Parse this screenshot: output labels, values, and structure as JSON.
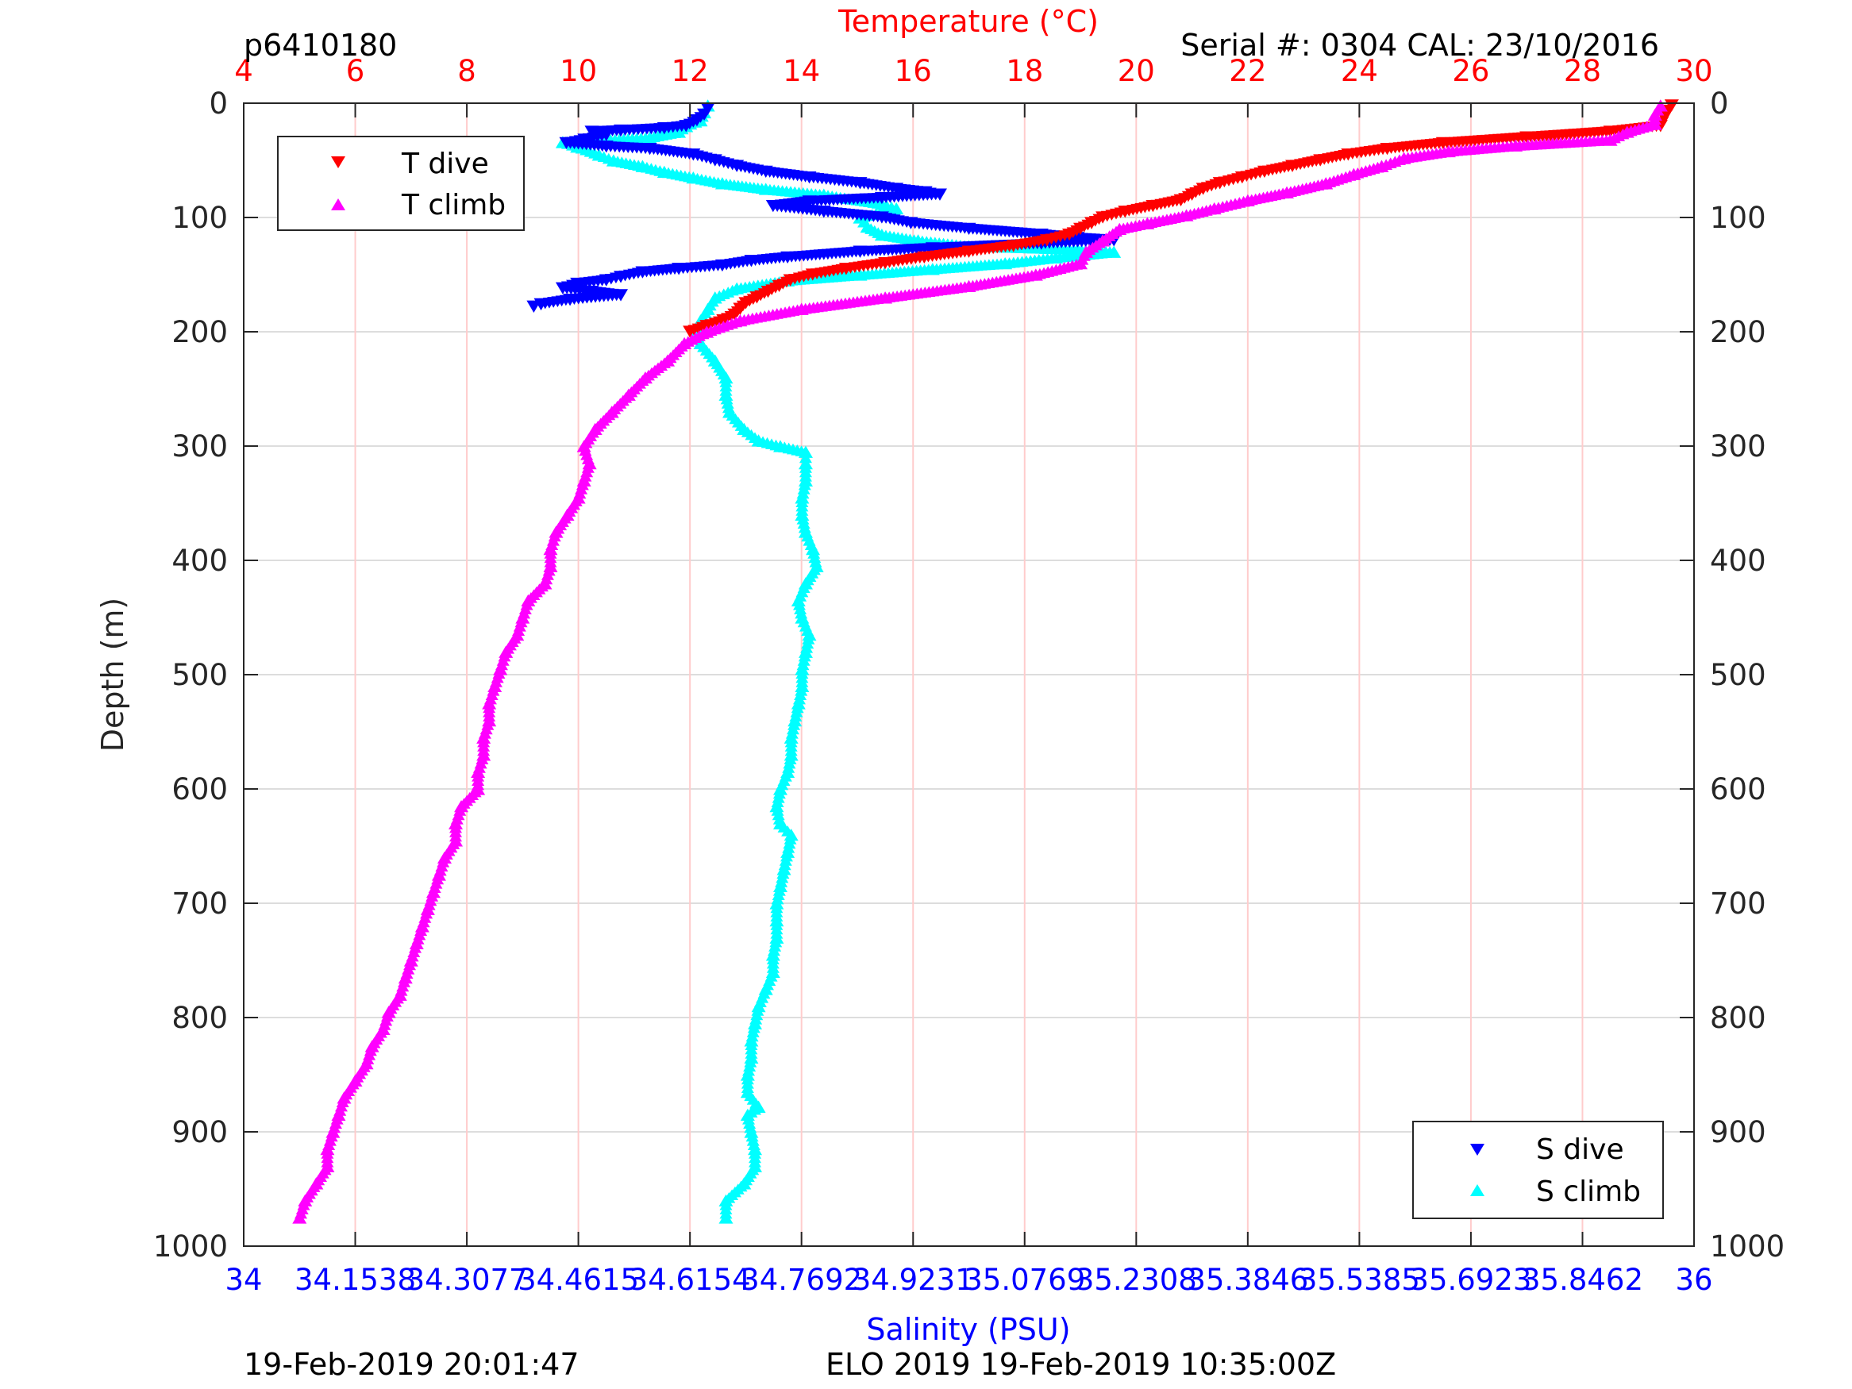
{
  "header": {
    "glider_id": "p6410180",
    "serial_info": "Serial #: 0304  CAL: 23/10/2016"
  },
  "footer": {
    "left_timestamp": "19-Feb-2019 20:01:47",
    "mission": "ELO 2019 19-Feb-2019 10:35:00Z"
  },
  "colors": {
    "t_dive": "#ff0000",
    "t_climb": "#ff00ff",
    "s_dive": "#0000ff",
    "s_climb": "#00ffff",
    "temp_axis": "#ff0000",
    "sal_axis": "#0000ff",
    "grid_temp": "#ffcccc",
    "grid_depth": "#dddddd"
  },
  "chart_data": {
    "type": "scatter",
    "title": "",
    "temperature_axis": {
      "label": "Temperature (°C)",
      "range": [
        4,
        30
      ],
      "ticks": [
        4,
        6,
        8,
        10,
        12,
        14,
        16,
        18,
        20,
        22,
        24,
        26,
        28,
        30
      ],
      "tick_labels": [
        "4",
        "6",
        "8",
        "10",
        "12",
        "14",
        "16",
        "18",
        "20",
        "22",
        "24",
        "26",
        "28",
        "30"
      ]
    },
    "salinity_axis": {
      "label": "Salinity (PSU)",
      "range": [
        34,
        36
      ],
      "ticks": [
        34,
        34.1538,
        34.3077,
        34.4615,
        34.6154,
        34.7692,
        34.9231,
        35.0769,
        35.2308,
        35.3846,
        35.5385,
        35.6923,
        35.8462,
        36
      ],
      "tick_labels": [
        "34",
        "34.1538",
        "34.3077",
        "34.4615",
        "34.6154",
        "34.7692",
        "34.9231",
        "35.0769",
        "35.2308",
        "35.3846",
        "35.5385",
        "35.6923",
        "35.8462",
        "36"
      ]
    },
    "depth_axis": {
      "label": "Depth (m)",
      "range": [
        0,
        1000
      ],
      "reversed": true,
      "ticks": [
        0,
        100,
        200,
        300,
        400,
        500,
        600,
        700,
        800,
        900,
        1000
      ],
      "tick_labels": [
        "0",
        "100",
        "200",
        "300",
        "400",
        "500",
        "600",
        "700",
        "800",
        "900",
        "1000"
      ]
    },
    "legend_temperature": {
      "placement": "top-left",
      "entries": [
        "T dive",
        "T climb"
      ]
    },
    "legend_salinity": {
      "placement": "bottom-right",
      "entries": [
        "S dive",
        "S climb"
      ]
    },
    "series": [
      {
        "name": "T dive",
        "axis": "temperature",
        "marker": "triangle-down",
        "points": [
          [
            29.6,
            2
          ],
          [
            29.5,
            10
          ],
          [
            29.4,
            20
          ],
          [
            28.5,
            25
          ],
          [
            27.0,
            30
          ],
          [
            25.5,
            35
          ],
          [
            24.5,
            40
          ],
          [
            23.8,
            45
          ],
          [
            23.3,
            50
          ],
          [
            22.8,
            55
          ],
          [
            22.3,
            60
          ],
          [
            21.9,
            65
          ],
          [
            21.5,
            70
          ],
          [
            21.2,
            75
          ],
          [
            21.0,
            80
          ],
          [
            20.8,
            85
          ],
          [
            20.3,
            90
          ],
          [
            19.8,
            95
          ],
          [
            19.4,
            100
          ],
          [
            19.2,
            105
          ],
          [
            19.0,
            110
          ],
          [
            18.8,
            115
          ],
          [
            18.4,
            120
          ],
          [
            17.8,
            125
          ],
          [
            17.0,
            130
          ],
          [
            16.2,
            135
          ],
          [
            15.5,
            140
          ],
          [
            14.8,
            145
          ],
          [
            14.2,
            150
          ],
          [
            13.8,
            155
          ],
          [
            13.6,
            160
          ],
          [
            13.4,
            165
          ],
          [
            13.2,
            170
          ],
          [
            13.0,
            175
          ],
          [
            12.9,
            180
          ],
          [
            12.8,
            185
          ],
          [
            12.6,
            190
          ],
          [
            12.3,
            195
          ],
          [
            12.0,
            200
          ]
        ]
      },
      {
        "name": "T climb",
        "axis": "temperature",
        "marker": "triangle-up",
        "points": [
          [
            5.0,
            975
          ],
          [
            5.1,
            960
          ],
          [
            5.3,
            945
          ],
          [
            5.5,
            930
          ],
          [
            5.5,
            915
          ],
          [
            5.6,
            900
          ],
          [
            5.7,
            885
          ],
          [
            5.8,
            870
          ],
          [
            6.0,
            855
          ],
          [
            6.2,
            840
          ],
          [
            6.3,
            825
          ],
          [
            6.5,
            810
          ],
          [
            6.6,
            795
          ],
          [
            6.8,
            780
          ],
          [
            6.9,
            765
          ],
          [
            7.0,
            750
          ],
          [
            7.1,
            735
          ],
          [
            7.2,
            720
          ],
          [
            7.3,
            705
          ],
          [
            7.4,
            690
          ],
          [
            7.5,
            675
          ],
          [
            7.6,
            660
          ],
          [
            7.8,
            645
          ],
          [
            7.8,
            630
          ],
          [
            7.9,
            615
          ],
          [
            8.2,
            600
          ],
          [
            8.2,
            585
          ],
          [
            8.3,
            570
          ],
          [
            8.3,
            555
          ],
          [
            8.4,
            540
          ],
          [
            8.4,
            525
          ],
          [
            8.5,
            510
          ],
          [
            8.6,
            495
          ],
          [
            8.7,
            480
          ],
          [
            8.9,
            465
          ],
          [
            9.0,
            450
          ],
          [
            9.1,
            435
          ],
          [
            9.4,
            420
          ],
          [
            9.5,
            405
          ],
          [
            9.5,
            390
          ],
          [
            9.6,
            375
          ],
          [
            9.8,
            360
          ],
          [
            10.0,
            345
          ],
          [
            10.1,
            330
          ],
          [
            10.2,
            315
          ],
          [
            10.1,
            300
          ],
          [
            10.3,
            285
          ],
          [
            10.6,
            270
          ],
          [
            10.9,
            255
          ],
          [
            11.2,
            240
          ],
          [
            11.6,
            225
          ],
          [
            11.9,
            210
          ],
          [
            12.3,
            200
          ],
          [
            12.9,
            190
          ],
          [
            14.0,
            180
          ],
          [
            15.5,
            170
          ],
          [
            17.0,
            160
          ],
          [
            18.2,
            150
          ],
          [
            19.0,
            140
          ],
          [
            19.1,
            130
          ],
          [
            19.4,
            120
          ],
          [
            19.7,
            110
          ],
          [
            20.2,
            105
          ],
          [
            20.9,
            98
          ],
          [
            21.4,
            92
          ],
          [
            22.0,
            85
          ],
          [
            22.7,
            78
          ],
          [
            23.4,
            70
          ],
          [
            23.9,
            62
          ],
          [
            24.4,
            55
          ],
          [
            24.8,
            48
          ],
          [
            25.6,
            42
          ],
          [
            26.8,
            37
          ],
          [
            28.5,
            32
          ],
          [
            28.8,
            25
          ],
          [
            29.3,
            18
          ],
          [
            29.3,
            10
          ],
          [
            29.4,
            2
          ]
        ]
      },
      {
        "name": "S dive",
        "axis": "salinity",
        "marker": "triangle-down",
        "points": [
          [
            34.64,
            5
          ],
          [
            34.635,
            10
          ],
          [
            34.625,
            15
          ],
          [
            34.61,
            20
          ],
          [
            34.58,
            22
          ],
          [
            34.52,
            24
          ],
          [
            34.48,
            25
          ],
          [
            34.5,
            28
          ],
          [
            34.47,
            32
          ],
          [
            34.445,
            35
          ],
          [
            34.5,
            38
          ],
          [
            34.56,
            40
          ],
          [
            34.62,
            45
          ],
          [
            34.65,
            50
          ],
          [
            34.68,
            55
          ],
          [
            34.72,
            60
          ],
          [
            34.78,
            65
          ],
          [
            34.85,
            70
          ],
          [
            34.9,
            75
          ],
          [
            34.94,
            78
          ],
          [
            34.96,
            80
          ],
          [
            34.88,
            83
          ],
          [
            34.78,
            86
          ],
          [
            34.73,
            90
          ],
          [
            34.8,
            95
          ],
          [
            34.88,
            100
          ],
          [
            34.92,
            105
          ],
          [
            35.0,
            110
          ],
          [
            35.1,
            115
          ],
          [
            35.15,
            118
          ],
          [
            35.2,
            120
          ],
          [
            35.1,
            123
          ],
          [
            34.95,
            127
          ],
          [
            34.85,
            130
          ],
          [
            34.75,
            135
          ],
          [
            34.7,
            138
          ],
          [
            34.66,
            142
          ],
          [
            34.6,
            145
          ],
          [
            34.55,
            148
          ],
          [
            34.52,
            152
          ],
          [
            34.5,
            155
          ],
          [
            34.46,
            158
          ],
          [
            34.44,
            162
          ],
          [
            34.48,
            165
          ],
          [
            34.52,
            168
          ],
          [
            34.45,
            172
          ],
          [
            34.41,
            176
          ],
          [
            34.4,
            178
          ]
        ]
      },
      {
        "name": "S climb",
        "axis": "salinity",
        "marker": "triangle-up",
        "points": [
          [
            34.665,
            975
          ],
          [
            34.665,
            960
          ],
          [
            34.69,
            945
          ],
          [
            34.705,
            930
          ],
          [
            34.705,
            915
          ],
          [
            34.7,
            900
          ],
          [
            34.695,
            885
          ],
          [
            34.71,
            878
          ],
          [
            34.695,
            865
          ],
          [
            34.695,
            850
          ],
          [
            34.7,
            835
          ],
          [
            34.7,
            820
          ],
          [
            34.705,
            805
          ],
          [
            34.71,
            790
          ],
          [
            34.72,
            775
          ],
          [
            34.73,
            760
          ],
          [
            34.73,
            745
          ],
          [
            34.735,
            730
          ],
          [
            34.735,
            715
          ],
          [
            34.735,
            700
          ],
          [
            34.74,
            685
          ],
          [
            34.745,
            670
          ],
          [
            34.75,
            655
          ],
          [
            34.755,
            640
          ],
          [
            34.74,
            630
          ],
          [
            34.735,
            615
          ],
          [
            34.74,
            600
          ],
          [
            34.75,
            585
          ],
          [
            34.755,
            570
          ],
          [
            34.755,
            555
          ],
          [
            34.76,
            540
          ],
          [
            34.765,
            525
          ],
          [
            34.77,
            510
          ],
          [
            34.77,
            495
          ],
          [
            34.775,
            480
          ],
          [
            34.78,
            465
          ],
          [
            34.77,
            450
          ],
          [
            34.765,
            435
          ],
          [
            34.775,
            420
          ],
          [
            34.79,
            405
          ],
          [
            34.785,
            390
          ],
          [
            34.775,
            375
          ],
          [
            34.77,
            360
          ],
          [
            34.77,
            345
          ],
          [
            34.775,
            330
          ],
          [
            34.775,
            315
          ],
          [
            34.775,
            305
          ],
          [
            34.74,
            300
          ],
          [
            34.71,
            295
          ],
          [
            34.69,
            285
          ],
          [
            34.67,
            270
          ],
          [
            34.665,
            255
          ],
          [
            34.665,
            240
          ],
          [
            34.65,
            225
          ],
          [
            34.63,
            210
          ],
          [
            34.625,
            200
          ],
          [
            34.63,
            190
          ],
          [
            34.64,
            180
          ],
          [
            34.65,
            170
          ],
          [
            34.68,
            162
          ],
          [
            34.75,
            155
          ],
          [
            34.85,
            150
          ],
          [
            34.95,
            145
          ],
          [
            35.05,
            140
          ],
          [
            35.12,
            135
          ],
          [
            35.2,
            130
          ],
          [
            35.15,
            128
          ],
          [
            35.0,
            125
          ],
          [
            34.93,
            120
          ],
          [
            34.88,
            115
          ],
          [
            34.86,
            108
          ],
          [
            34.85,
            100
          ],
          [
            34.9,
            92
          ],
          [
            34.88,
            88
          ],
          [
            34.8,
            80
          ],
          [
            34.72,
            75
          ],
          [
            34.66,
            70
          ],
          [
            34.62,
            65
          ],
          [
            34.58,
            60
          ],
          [
            34.55,
            55
          ],
          [
            34.51,
            50
          ],
          [
            34.49,
            45
          ],
          [
            34.46,
            38
          ],
          [
            34.44,
            34
          ],
          [
            34.5,
            32
          ],
          [
            34.56,
            30
          ],
          [
            34.6,
            25
          ],
          [
            34.61,
            20
          ],
          [
            34.63,
            15
          ],
          [
            34.635,
            8
          ],
          [
            34.64,
            2
          ]
        ]
      }
    ]
  }
}
